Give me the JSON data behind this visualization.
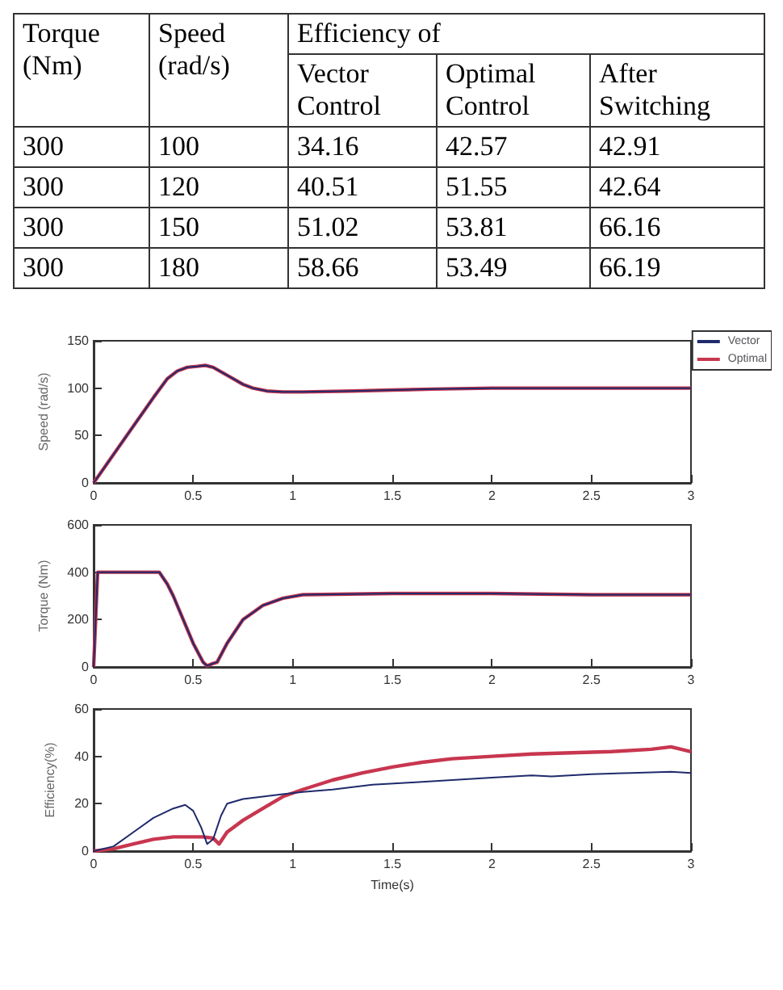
{
  "chart_data": [
    {
      "type": "other",
      "data_labels": true,
      "annotations": [
        "Efficiency of"
      ],
      "categories": [
        "Torque (Nm)",
        "Speed (rad/s)",
        "Vector Control",
        "Optimal Control",
        "After Switching"
      ],
      "cell_labels": [
        [
          "300",
          "100",
          "34.16",
          "42.57",
          "42.91"
        ],
        [
          "300",
          "120",
          "40.51",
          "51.55",
          "42.64"
        ],
        [
          "300",
          "150",
          "51.02",
          "53.81",
          "66.16"
        ],
        [
          "300",
          "180",
          "58.66",
          "53.49",
          "66.19"
        ]
      ]
    },
    {
      "type": "line",
      "ylabel": "Speed (rad/s)",
      "xlim": [
        0,
        3
      ],
      "xticks": [
        0,
        0.5,
        1,
        1.5,
        2,
        2.5,
        3
      ],
      "ylim": [
        0,
        150
      ],
      "yticks": [
        0,
        50,
        100,
        150
      ],
      "grid": false,
      "legend": "top right",
      "x": [
        0,
        0.1,
        0.2,
        0.3,
        0.37,
        0.42,
        0.47,
        0.52,
        0.56,
        0.6,
        0.65,
        0.7,
        0.75,
        0.8,
        0.87,
        0.95,
        1.0,
        1.05,
        1.3,
        1.5,
        1.7,
        2.0,
        2.5,
        3.0
      ],
      "series": [
        {
          "name": "Vector",
          "color": "#1f2a6b",
          "values": [
            0,
            30,
            60,
            90,
            110,
            118,
            122,
            123,
            124,
            122,
            116,
            110,
            104,
            100,
            97,
            96,
            96,
            96,
            97,
            98,
            99,
            100,
            100,
            100
          ]
        },
        {
          "name": "Optimal",
          "color": "#c8364f",
          "values": [
            0,
            30,
            60,
            90,
            110,
            118,
            122,
            123,
            124,
            122,
            116,
            110,
            104,
            100,
            97,
            96,
            96,
            96,
            97,
            98,
            99,
            100,
            100,
            100
          ]
        }
      ]
    },
    {
      "type": "line",
      "ylabel": "Torque (Nm)",
      "xlim": [
        0,
        3
      ],
      "xticks": [
        0,
        0.5,
        1,
        1.5,
        2,
        2.5,
        3
      ],
      "ylim": [
        0,
        600
      ],
      "yticks": [
        0,
        200,
        400,
        600
      ],
      "grid": false,
      "x": [
        0,
        0.02,
        0.1,
        0.2,
        0.33,
        0.37,
        0.4,
        0.45,
        0.5,
        0.55,
        0.57,
        0.6,
        0.62,
        0.67,
        0.75,
        0.85,
        0.95,
        1.05,
        1.5,
        2.0,
        2.5,
        3.0
      ],
      "series": [
        {
          "color": "#1f2a6b",
          "values": [
            0,
            400,
            400,
            400,
            400,
            350,
            300,
            200,
            100,
            20,
            5,
            15,
            20,
            100,
            200,
            260,
            290,
            305,
            310,
            310,
            305,
            305
          ]
        },
        {
          "color": "#c8364f",
          "values": [
            0,
            400,
            400,
            400,
            400,
            350,
            300,
            200,
            100,
            20,
            5,
            15,
            20,
            100,
            200,
            260,
            290,
            305,
            310,
            310,
            305,
            305
          ]
        }
      ]
    },
    {
      "type": "line",
      "xlabel": "Time(s)",
      "ylabel": "Efficiency(%)",
      "xlim": [
        0,
        3
      ],
      "xticks": [
        0,
        0.5,
        1,
        1.5,
        2,
        2.5,
        3
      ],
      "ylim": [
        0,
        60
      ],
      "yticks": [
        0,
        20,
        40,
        60
      ],
      "grid": false,
      "series": [
        {
          "color": "#1f2a6b",
          "x": [
            0,
            0.1,
            0.2,
            0.3,
            0.4,
            0.46,
            0.5,
            0.54,
            0.57,
            0.6,
            0.64,
            0.67,
            0.75,
            0.85,
            0.95,
            1.05,
            1.2,
            1.4,
            1.6,
            1.8,
            2.0,
            2.2,
            2.3,
            2.5,
            2.7,
            2.9,
            3.0
          ],
          "values": [
            0,
            2,
            8,
            14,
            18,
            19.5,
            17,
            10,
            3,
            5,
            15,
            20,
            22,
            23,
            24,
            25,
            26,
            28,
            29,
            30,
            31,
            32,
            31.5,
            32.5,
            33,
            33.5,
            33
          ]
        },
        {
          "color": "#c8364f",
          "x": [
            0,
            0.1,
            0.2,
            0.3,
            0.4,
            0.5,
            0.55,
            0.6,
            0.63,
            0.67,
            0.75,
            0.85,
            0.95,
            1.05,
            1.2,
            1.35,
            1.5,
            1.65,
            1.8,
            2.0,
            2.2,
            2.4,
            2.6,
            2.8,
            2.9,
            3.0
          ],
          "values": [
            0,
            1,
            3,
            5,
            6,
            6,
            6,
            5.5,
            3,
            8,
            13,
            18,
            23,
            26,
            30,
            33,
            35.5,
            37.5,
            39,
            40,
            41,
            41.5,
            42,
            43,
            44,
            42
          ]
        }
      ]
    }
  ]
}
